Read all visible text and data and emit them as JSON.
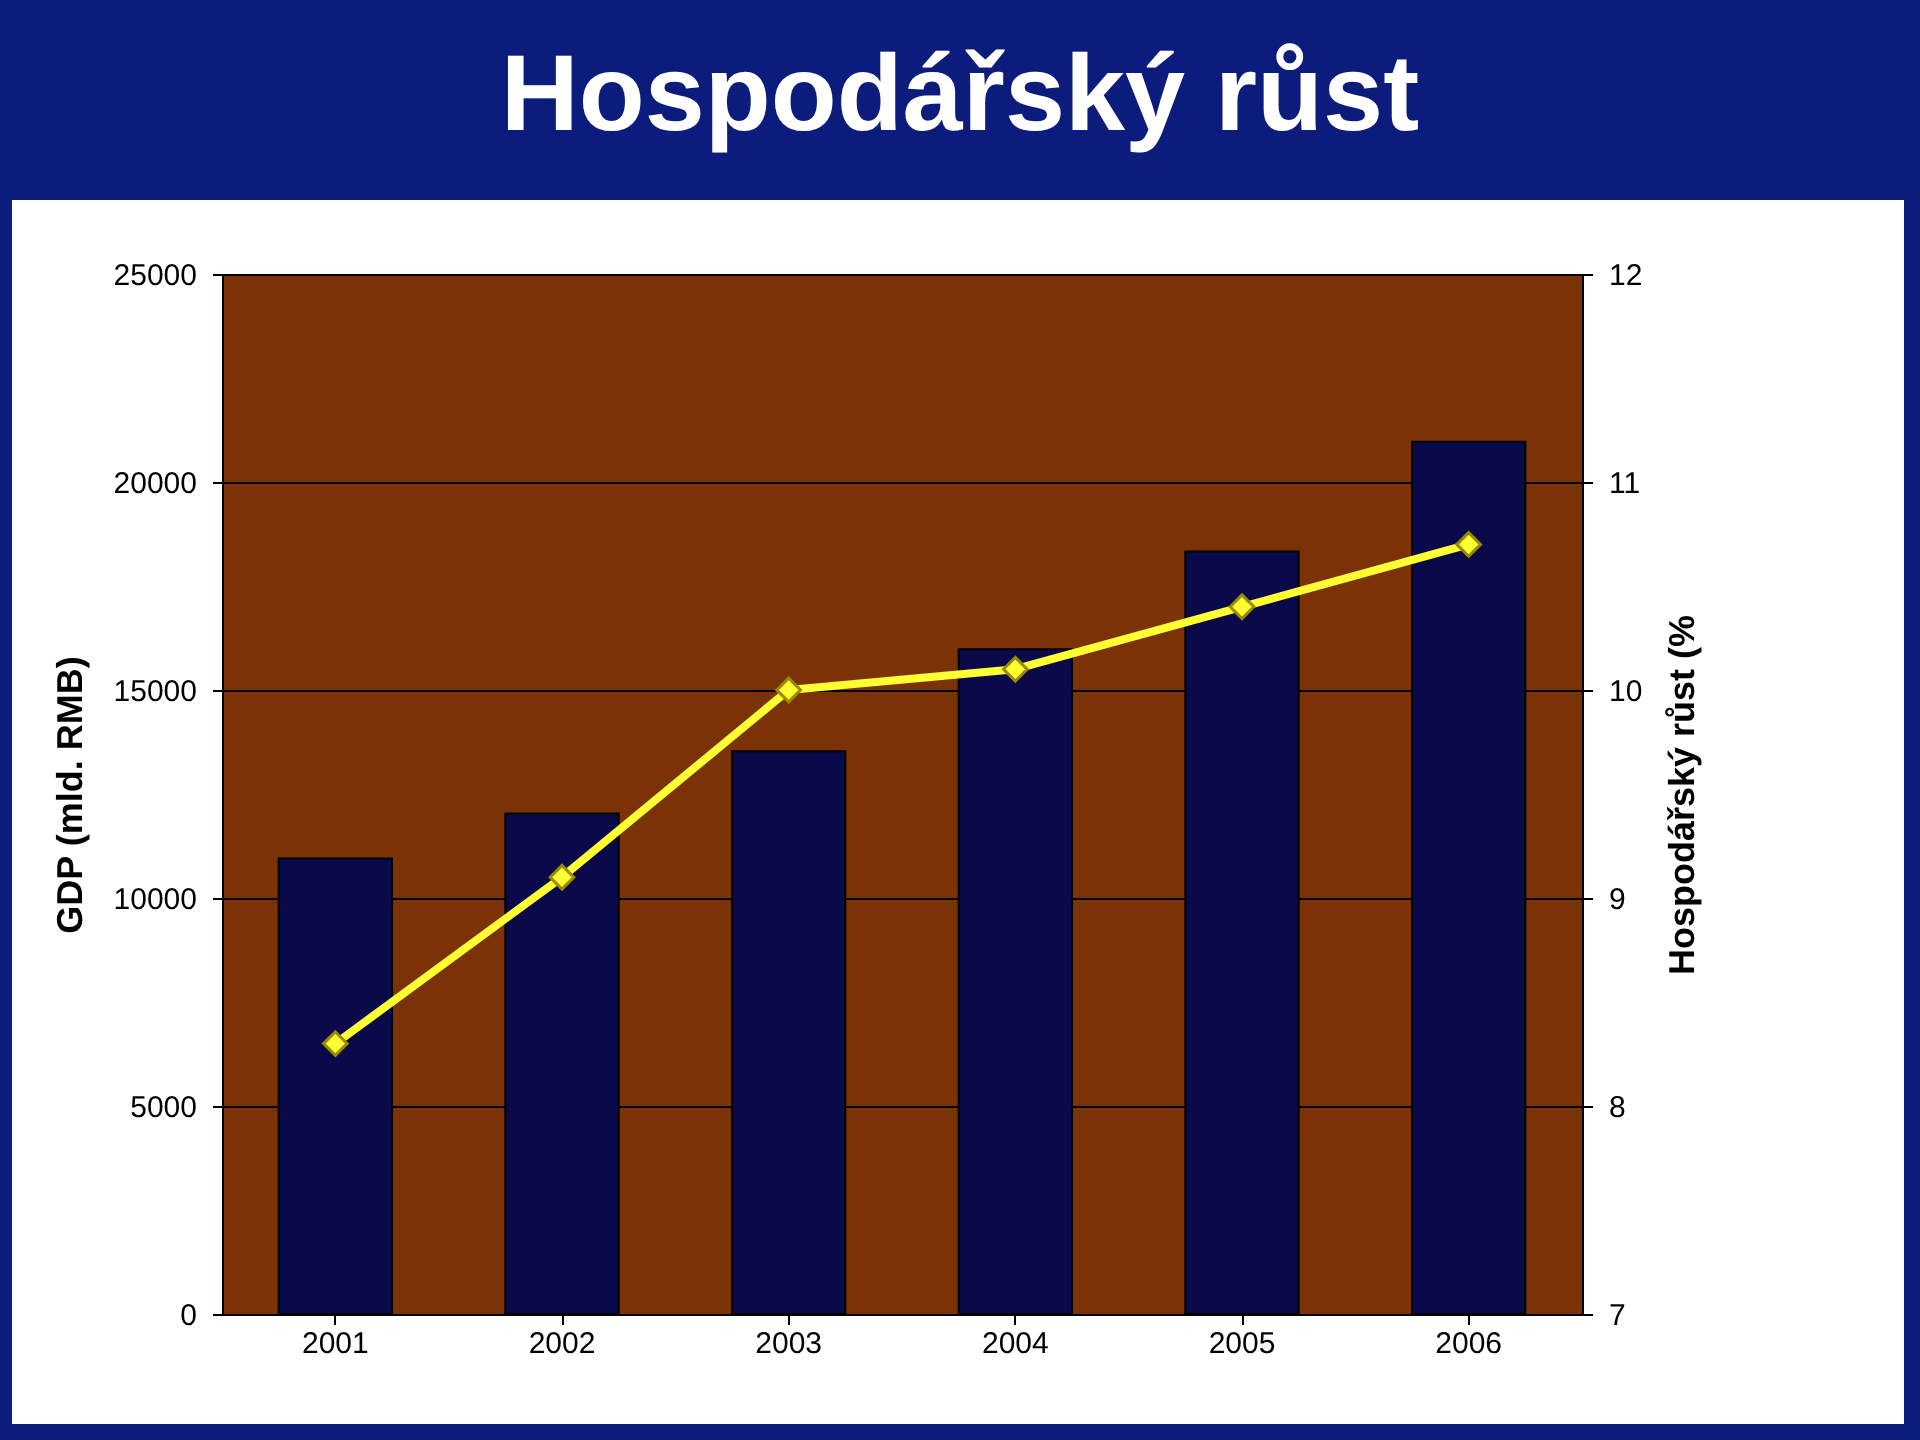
{
  "chart_data": {
    "type": "bar",
    "title": "Hospodářský růst",
    "ylabel": "GDP (mld. RMB)",
    "y2label": "Hospodářský růst (%",
    "categories": [
      "2001",
      "2002",
      "2003",
      "2004",
      "2005",
      "2006"
    ],
    "series": [
      {
        "color": "#0a0a4a",
        "values": [
          10950,
          12030,
          13530,
          15980,
          18330,
          20970
        ]
      },
      {
        "type": "line",
        "axis": "y2",
        "color": "#ffff33",
        "values": [
          8.3,
          9.1,
          10.0,
          10.1,
          10.4,
          10.7
        ]
      }
    ],
    "ylim": [
      0,
      25000
    ],
    "yticks": [
      0,
      5000,
      10000,
      15000,
      20000,
      25000
    ],
    "y2lim": [
      7,
      12
    ],
    "y2ticks": [
      7,
      8,
      9,
      10,
      11,
      12
    ],
    "grid": "y",
    "legend": false,
    "marker": "diamond",
    "line_style": "solid"
  }
}
